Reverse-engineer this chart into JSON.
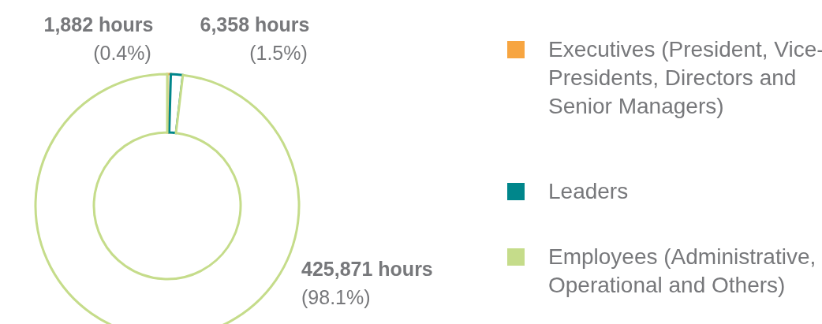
{
  "chart_data": {
    "type": "donut",
    "categories": [
      "Executives (President, Vice-Presidents, Directors and Senior Managers)",
      "Leaders",
      "Employees (Administrative, Operational and Others)"
    ],
    "values": [
      1882,
      6358,
      425871
    ],
    "colors": [
      "#f7a541",
      "#00868b",
      "#c5dc8a"
    ],
    "value_labels": [
      "1,882 hours\n(0.4%)",
      "6,358 hours\n(1.5%)",
      "425,871 hours\n(98.1%)"
    ],
    "legend": "right"
  }
}
